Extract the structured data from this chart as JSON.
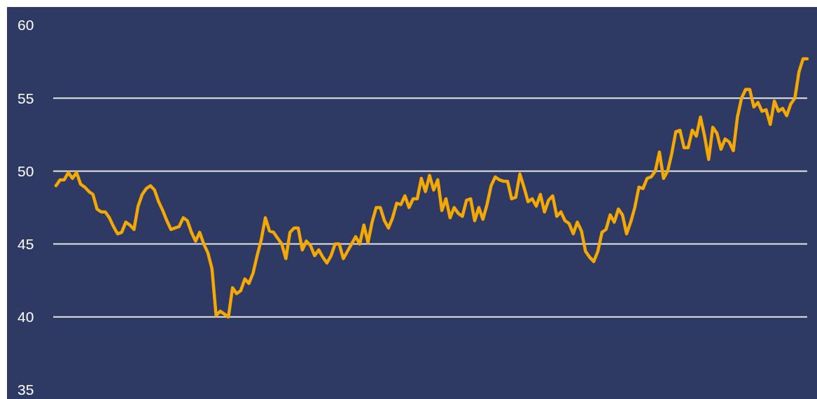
{
  "chart_data": {
    "type": "line",
    "categories": [
      null,
      null,
      null,
      null,
      null,
      null,
      null,
      null,
      null,
      null,
      null,
      null,
      null,
      null,
      null,
      null,
      null,
      null,
      null,
      null,
      null,
      null,
      null,
      null,
      null,
      null,
      null,
      null,
      null,
      null,
      null,
      null,
      null,
      null,
      null,
      null,
      null,
      null,
      null,
      null,
      null,
      null,
      null,
      null,
      null,
      null,
      null,
      null,
      null,
      null,
      null,
      null,
      null,
      null,
      null,
      null,
      null,
      null,
      null,
      null,
      null,
      null,
      null,
      null,
      null,
      null,
      null,
      null,
      null,
      null,
      null,
      null,
      null,
      null,
      null,
      null,
      null,
      null,
      null,
      null,
      null,
      null,
      null,
      null,
      null,
      null,
      null,
      null,
      null,
      null,
      null,
      null,
      null,
      null,
      null,
      null,
      null,
      null,
      null,
      null,
      null,
      null,
      null,
      null,
      null,
      null,
      null,
      null,
      null,
      null,
      null,
      null,
      null,
      null,
      null,
      null,
      null,
      null,
      null,
      null,
      null,
      null,
      null,
      null,
      null,
      null,
      null,
      null,
      null,
      null,
      null,
      null,
      null,
      null,
      null,
      null,
      null,
      null,
      null,
      null,
      null,
      null,
      null,
      null,
      null,
      null,
      null,
      null,
      null,
      null,
      null,
      null,
      null,
      null,
      null,
      null,
      null,
      null,
      null,
      null,
      null,
      null,
      null,
      null,
      null,
      null,
      null,
      null,
      null,
      null,
      null,
      null,
      null,
      null,
      null,
      null,
      null,
      null,
      null,
      null,
      null,
      null,
      null,
      null
    ],
    "series": [
      {
        "color": "#f5a800",
        "values": [
          49.0,
          49.4,
          49.4,
          49.9,
          49.5,
          49.9,
          49.1,
          48.9,
          48.6,
          48.4,
          47.4,
          47.2,
          47.2,
          46.8,
          46.2,
          45.7,
          45.8,
          46.5,
          46.3,
          46.0,
          47.6,
          48.4,
          48.8,
          49.0,
          48.7,
          47.9,
          47.3,
          46.6,
          46.0,
          46.1,
          46.2,
          46.8,
          46.6,
          45.8,
          45.2,
          45.8,
          45.0,
          44.4,
          43.3,
          40.1,
          40.4,
          40.2,
          40.0,
          42.0,
          41.6,
          41.8,
          42.6,
          42.3,
          43.0,
          44.2,
          45.3,
          46.8,
          45.9,
          45.8,
          45.4,
          45.0,
          44.0,
          45.8,
          46.1,
          46.1,
          44.6,
          45.2,
          44.9,
          44.2,
          44.6,
          44.1,
          43.7,
          44.2,
          45.0,
          45.0,
          44.0,
          44.5,
          45.0,
          45.5,
          45.0,
          46.3,
          45.1,
          46.5,
          47.5,
          47.5,
          46.6,
          46.1,
          46.8,
          47.8,
          47.7,
          48.3,
          47.5,
          48.1,
          48.1,
          49.5,
          48.6,
          49.7,
          48.7,
          49.4,
          47.3,
          48.1,
          46.8,
          47.5,
          47.1,
          46.9,
          48.0,
          48.1,
          46.6,
          47.5,
          46.7,
          47.7,
          49.0,
          49.6,
          49.4,
          49.3,
          49.3,
          48.1,
          48.2,
          49.8,
          48.9,
          47.9,
          48.1,
          47.6,
          48.4,
          47.2,
          48.0,
          48.3,
          46.9,
          47.2,
          46.6,
          46.4,
          45.7,
          46.5,
          45.9,
          44.5,
          44.1,
          43.8,
          44.5,
          45.8,
          46.0,
          47.0,
          46.5,
          47.4,
          47.0,
          45.7,
          46.5,
          47.5,
          48.9,
          48.8,
          49.5,
          49.6,
          50.0,
          51.3,
          49.5,
          50.0,
          51.2,
          52.7,
          52.8,
          51.6,
          51.6,
          52.8,
          52.4,
          53.7,
          52.4,
          50.8,
          53.0,
          52.6,
          51.5,
          52.2,
          52.0,
          51.4,
          53.7,
          55.0,
          55.6,
          55.6,
          54.4,
          54.7,
          54.1,
          54.2,
          53.2,
          54.8,
          54.1,
          54.3,
          53.8,
          54.6,
          55.0,
          56.8,
          57.7,
          57.7
        ]
      }
    ],
    "ylim": [
      35,
      60
    ],
    "yticks": [
      35,
      40,
      45,
      50,
      55,
      60
    ],
    "tick_labels": "y",
    "grid": "y",
    "marker": "none",
    "line_style": "solid"
  }
}
